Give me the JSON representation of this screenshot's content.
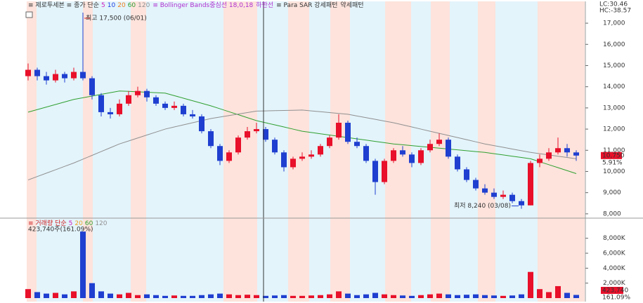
{
  "chart_data": {
    "type": "candlestick",
    "legend_prefix": "≡ 제로투세븐 ≡ 종가 단순",
    "ma_series": [
      {
        "name": "5",
        "color": "#d020c0"
      },
      {
        "name": "10",
        "color": "#2040e0"
      },
      {
        "name": "20",
        "color": "#f08020"
      },
      {
        "name": "60",
        "color": "#30a030",
        "values": [
          12800,
          12920,
          13040,
          13160,
          13280,
          13400,
          13480,
          13560,
          13640,
          13720,
          13800,
          13780,
          13760,
          13740,
          13720,
          13700,
          13580,
          13460,
          13340,
          13220,
          13100,
          12960,
          12820,
          12680,
          12540,
          12400,
          12300,
          12200,
          12100,
          12000,
          11900,
          11840,
          11780,
          11720,
          11660,
          11600,
          11540,
          11480,
          11420,
          11360,
          11300,
          11260,
          11220,
          11180,
          11140,
          11100,
          11060,
          11020,
          10980,
          10940,
          10900,
          10840,
          10780,
          10720,
          10660,
          10600,
          10460,
          10320,
          10180,
          10040,
          9900
        ]
      },
      {
        "name": "120",
        "color": "#909090",
        "values": [
          9600,
          9760,
          9920,
          10080,
          10240,
          10400,
          10580,
          10760,
          10940,
          11120,
          11300,
          11440,
          11580,
          11720,
          11860,
          12000,
          12100,
          12200,
          12300,
          12400,
          12500,
          12570,
          12640,
          12710,
          12780,
          12850,
          12860,
          12870,
          12880,
          12890,
          12900,
          12860,
          12820,
          12780,
          12740,
          12700,
          12620,
          12540,
          12460,
          12380,
          12300,
          12200,
          12100,
          12000,
          11900,
          11800,
          11700,
          11600,
          11500,
          11400,
          11300,
          11220,
          11140,
          11060,
          10980,
          10900,
          10840,
          10780,
          10720,
          10660,
          10600
        ]
      }
    ],
    "legend_suffix": [
      {
        "text": "≡ Bollinger Bands중심선 18,0,18",
        "color": "#b030d0"
      },
      {
        "text": "하한선",
        "color": "#b030d0"
      },
      {
        "text": "≡ Para SAR 강세패턴",
        "color": "#333333"
      },
      {
        "text": "약세패턴",
        "color": "#333333"
      }
    ],
    "corner_labels": [
      "LC:30.46",
      "HC:-38.57"
    ],
    "up_color": "#e8102a",
    "down_color": "#1f3fd0",
    "ohlc": [
      [
        14500,
        15100,
        14300,
        14800
      ],
      [
        14800,
        14900,
        14300,
        14500
      ],
      [
        14500,
        14700,
        14100,
        14300
      ],
      [
        14300,
        14800,
        14200,
        14600
      ],
      [
        14600,
        14700,
        14200,
        14400
      ],
      [
        14400,
        14900,
        14300,
        14700
      ],
      [
        14700,
        17500,
        14300,
        14400
      ],
      [
        14400,
        14500,
        13400,
        13600
      ],
      [
        13600,
        13700,
        12600,
        12800
      ],
      [
        12800,
        13000,
        12500,
        12700
      ],
      [
        12700,
        13400,
        12600,
        13200
      ],
      [
        13200,
        13800,
        13100,
        13600
      ],
      [
        13600,
        14000,
        13500,
        13800
      ],
      [
        13800,
        13900,
        13300,
        13500
      ],
      [
        13500,
        13600,
        13100,
        13200
      ],
      [
        13200,
        13300,
        12900,
        13000
      ],
      [
        13000,
        13300,
        12900,
        13100
      ],
      [
        13100,
        13200,
        12600,
        12700
      ],
      [
        12700,
        12900,
        12500,
        12600
      ],
      [
        12600,
        12700,
        11800,
        11900
      ],
      [
        11900,
        12000,
        11100,
        11200
      ],
      [
        11200,
        11300,
        10300,
        10500
      ],
      [
        10500,
        11000,
        10400,
        10900
      ],
      [
        10900,
        11700,
        10800,
        11600
      ],
      [
        11600,
        12100,
        11500,
        11900
      ],
      [
        11900,
        12300,
        11800,
        12000
      ],
      [
        12000,
        12100,
        11400,
        11500
      ],
      [
        11500,
        11600,
        10800,
        10900
      ],
      [
        10900,
        11000,
        10000,
        10200
      ],
      [
        10200,
        10700,
        10100,
        10600
      ],
      [
        10600,
        10900,
        10500,
        10700
      ],
      [
        10700,
        11000,
        10600,
        10800
      ],
      [
        10800,
        11300,
        10700,
        11200
      ],
      [
        11200,
        11700,
        11100,
        11600
      ],
      [
        11600,
        12700,
        11500,
        12300
      ],
      [
        12300,
        12400,
        11300,
        11400
      ],
      [
        11400,
        11600,
        11100,
        11200
      ],
      [
        11200,
        11300,
        10400,
        10500
      ],
      [
        10500,
        10600,
        8900,
        9500
      ],
      [
        9500,
        10600,
        9400,
        10500
      ],
      [
        10500,
        11100,
        10400,
        11000
      ],
      [
        11000,
        11200,
        10700,
        10800
      ],
      [
        10800,
        10900,
        10200,
        10400
      ],
      [
        10400,
        11100,
        10300,
        11000
      ],
      [
        11000,
        11500,
        10900,
        11300
      ],
      [
        11300,
        11800,
        11200,
        11500
      ],
      [
        11500,
        11600,
        10600,
        10700
      ],
      [
        10700,
        10800,
        10000,
        10100
      ],
      [
        10100,
        10200,
        9500,
        9600
      ],
      [
        9600,
        9700,
        9100,
        9200
      ],
      [
        9200,
        9400,
        8900,
        9000
      ],
      [
        9000,
        9200,
        8700,
        8800
      ],
      [
        8800,
        9100,
        8700,
        8900
      ],
      [
        8900,
        9000,
        8500,
        8600
      ],
      [
        8600,
        8700,
        8240,
        8400
      ],
      [
        8400,
        10500,
        8400,
        10400
      ],
      [
        10400,
        10800,
        10200,
        10600
      ],
      [
        10600,
        11100,
        10500,
        10900
      ],
      [
        10900,
        11600,
        10800,
        11100
      ],
      [
        11100,
        11300,
        10700,
        10900
      ],
      [
        10900,
        11000,
        10500,
        10750
      ]
    ],
    "ylim": [
      7830,
      17830
    ],
    "yticks": [
      {
        "value": 8000,
        "label": "8,000"
      },
      {
        "value": 9000,
        "label": "9,000"
      },
      {
        "value": 10000,
        "label": "10,000"
      },
      {
        "value": 11000,
        "label": "11,000"
      },
      {
        "value": 12000,
        "label": "12,000"
      },
      {
        "value": 13000,
        "label": "13,000"
      },
      {
        "value": 14000,
        "label": "14,000"
      },
      {
        "value": 15000,
        "label": "15,000"
      },
      {
        "value": 16000,
        "label": "16,000"
      },
      {
        "value": 17000,
        "label": "17,000"
      }
    ],
    "annotations": [
      "최고 17,500 (06/01)",
      "최저 8,240 (03/08)"
    ],
    "price_badge": "10,750",
    "change_badge": "5.91%",
    "volume": {
      "legend_prefix": "≡ 거래량 단순",
      "ma_series": [
        {
          "name": "5",
          "color": "#d020c0"
        },
        {
          "name": "20",
          "color": "#f0a020"
        },
        {
          "name": "60",
          "color": "#30a030"
        },
        {
          "name": "120",
          "color": "#909090"
        }
      ],
      "summary": "423,740주(161.09%)",
      "values": [
        1200,
        800,
        600,
        700,
        500,
        900,
        8900,
        2000,
        900,
        600,
        500,
        700,
        400,
        500,
        400,
        300,
        350,
        300,
        300,
        400,
        500,
        600,
        500,
        400,
        450,
        400,
        300,
        350,
        400,
        300,
        300,
        350,
        400,
        500,
        900,
        600,
        400,
        500,
        700,
        500,
        400,
        350,
        300,
        400,
        500,
        600,
        500,
        400,
        450,
        500,
        400,
        350,
        300,
        350,
        500,
        3500,
        1200,
        800,
        1600,
        700,
        423.74
      ],
      "ylim": [
        0,
        10600
      ],
      "yticks": [
        {
          "value": 2000,
          "label": "2,000K"
        },
        {
          "value": 4000,
          "label": "4,000K"
        },
        {
          "value": 6000,
          "label": "6,000K"
        },
        {
          "value": 8000,
          "label": "8,000K"
        }
      ],
      "badge": "423,740",
      "pct_badge": "161.09%"
    }
  }
}
